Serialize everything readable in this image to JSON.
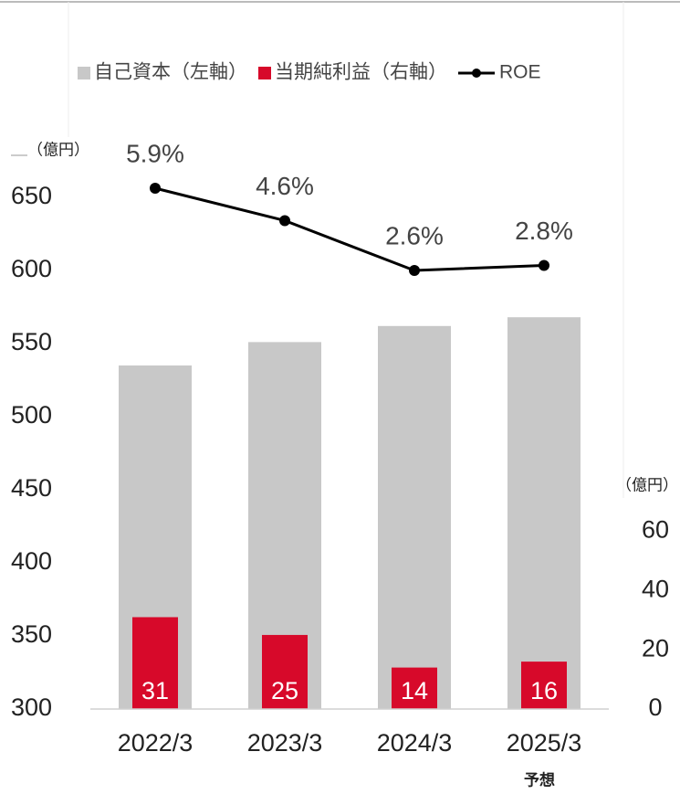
{
  "chart_data": {
    "type": "bar",
    "legend_position": "top",
    "y_axis_label": "（億円）",
    "y2_axis_label": "（億円）",
    "categories": [
      "2022/3",
      "2023/3",
      "2024/3",
      "2025/3"
    ],
    "annotations": [
      "予想"
    ],
    "ylim": [
      300,
      680
    ],
    "yticks": [
      300,
      350,
      400,
      450,
      500,
      550,
      600,
      650
    ],
    "y2lim": [
      0,
      70
    ],
    "y2ticks": [
      0,
      20,
      40,
      60
    ],
    "series": [
      {
        "name": "自己資本（左軸）",
        "color": "#c8c8c8",
        "values": [
          535,
          551,
          562,
          568
        ]
      },
      {
        "name": "当期純利益（右軸）",
        "color": "#d7092a",
        "axis": "y2",
        "values": [
          31,
          25,
          14,
          16
        ]
      },
      {
        "name": "ROE",
        "type": "line",
        "color": "#000000",
        "values": [
          5.9,
          4.6,
          2.6,
          2.8
        ],
        "value_labels": [
          "5.9%",
          "4.6%",
          "2.6%",
          "2.8%"
        ]
      }
    ]
  }
}
